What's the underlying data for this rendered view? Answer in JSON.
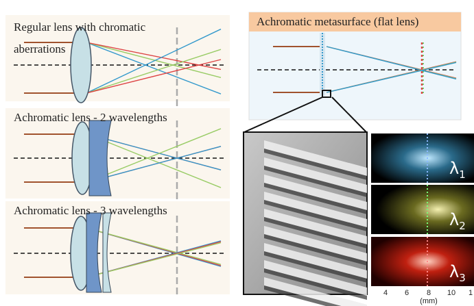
{
  "left_panels": [
    {
      "title": "Regular lens with chromatic aberrations"
    },
    {
      "title": "Achromatic lens - 2 wavelengths"
    },
    {
      "title": "Achromatic lens - 3 wavelengths"
    }
  ],
  "metasurface": {
    "title": "Achromatic metasurface (flat lens)"
  },
  "wavelength_panels": [
    {
      "symbol": "λ",
      "subscript": "1"
    },
    {
      "symbol": "λ",
      "subscript": "2"
    },
    {
      "symbol": "λ",
      "subscript": "3"
    }
  ],
  "axis": {
    "ticks": [
      "4",
      "6",
      "8",
      "10",
      "1"
    ],
    "unit": "(mm)"
  }
}
